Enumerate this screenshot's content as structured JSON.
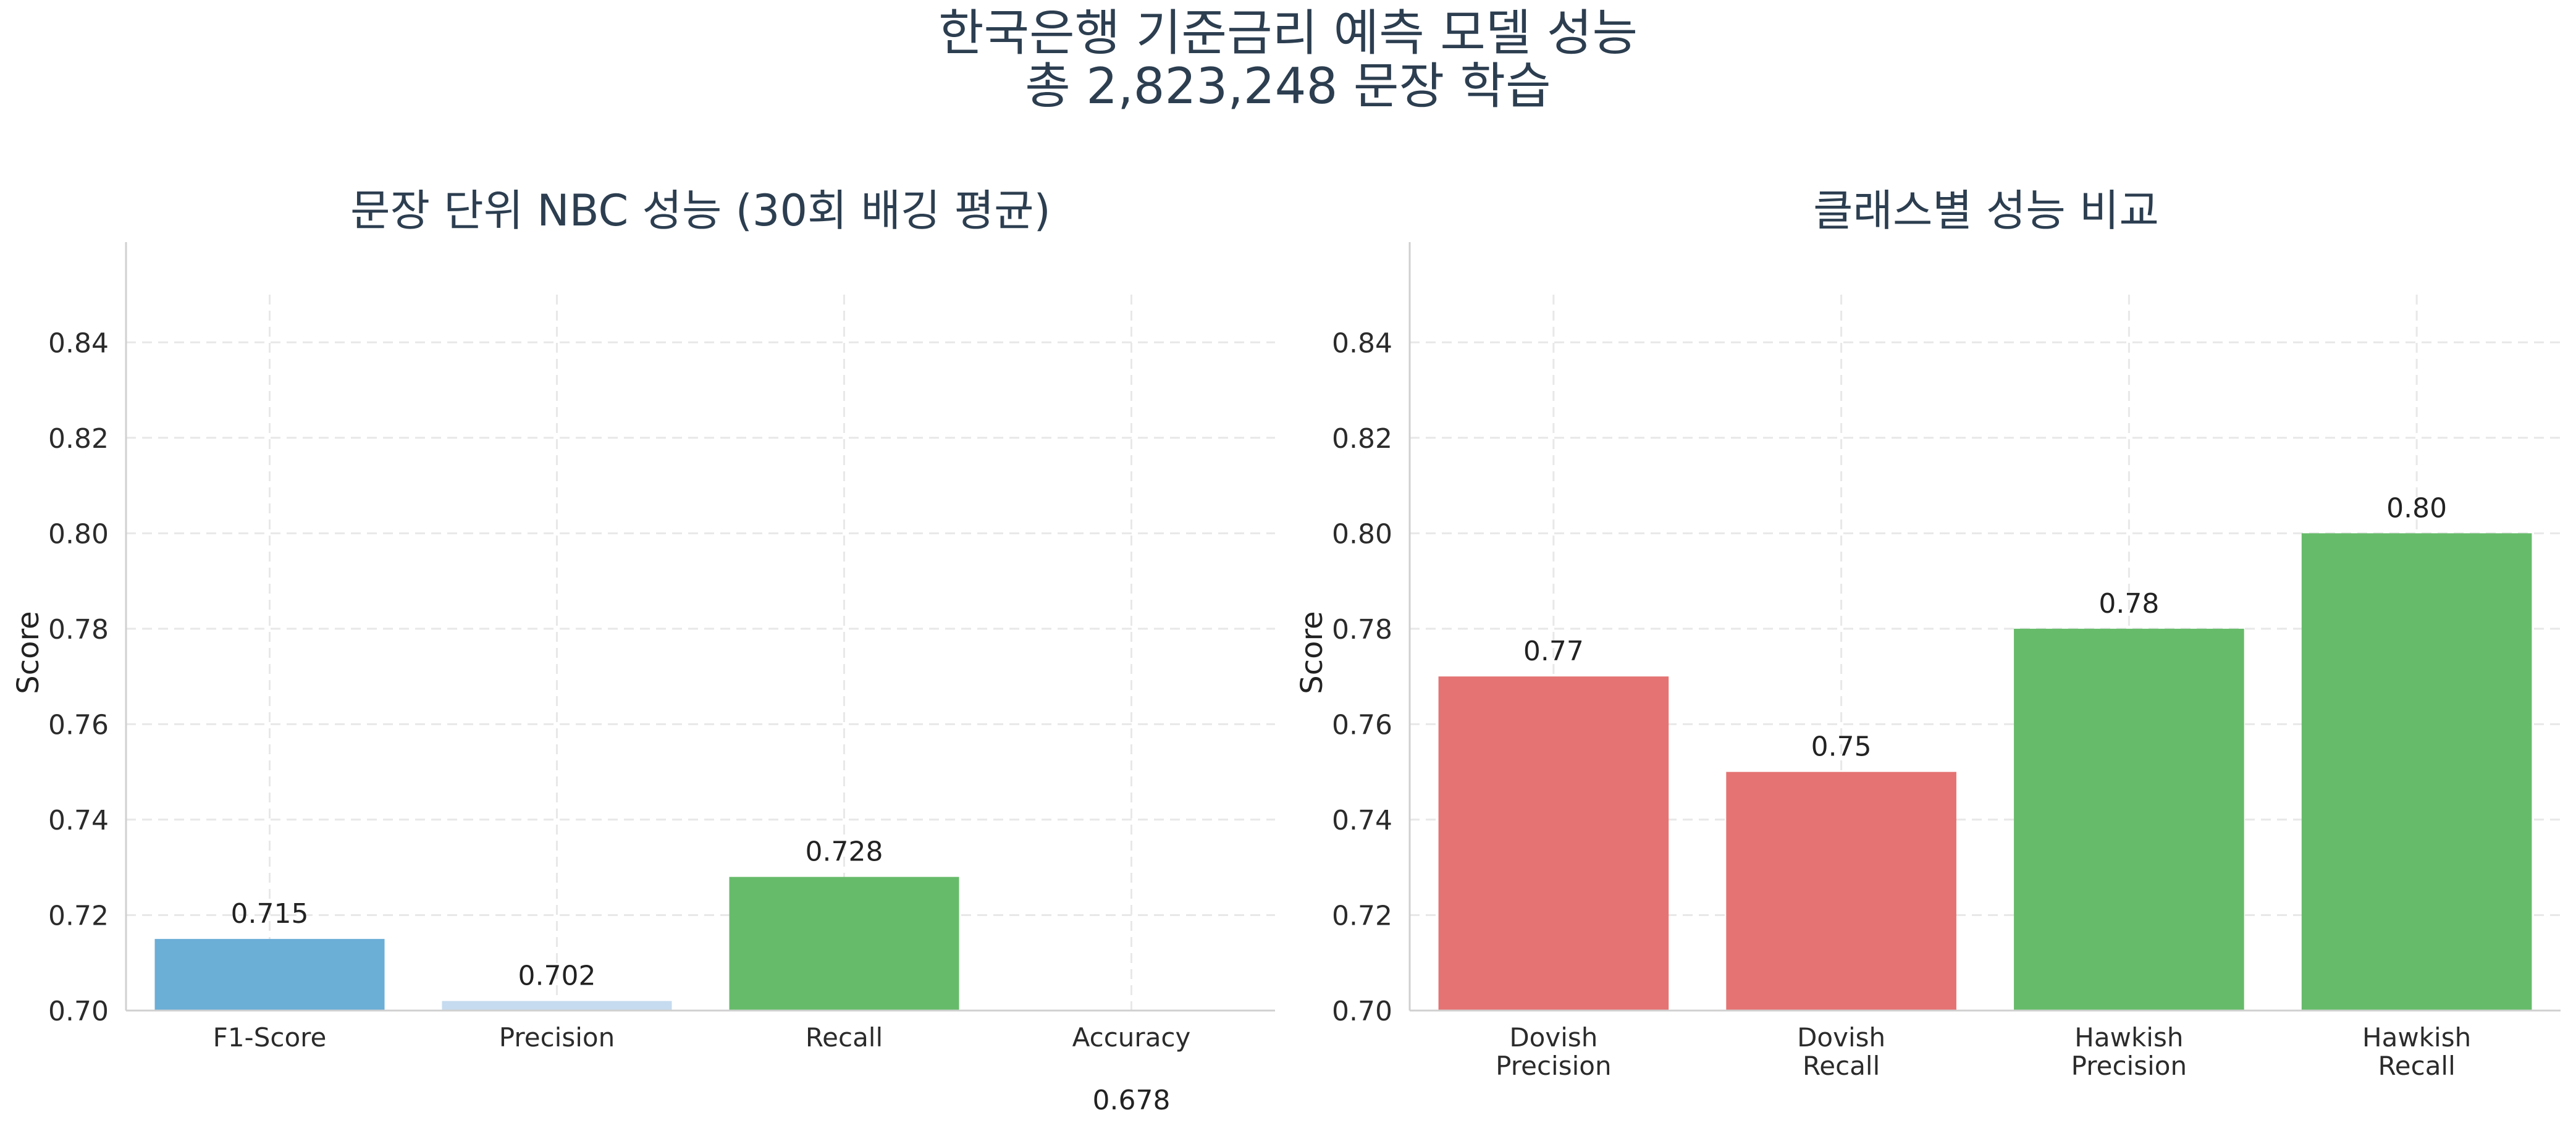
{
  "figure": {
    "title_line1": "한국은행 기준금리 예측 모델 성능",
    "title_line2": "총 2,823,248 문장 학습"
  },
  "chart_data": [
    {
      "type": "bar",
      "title": "문장 단위 NBC 성능 (30회 배깅 평균)",
      "xlabel": "",
      "ylabel": "Score",
      "ylim": [
        0.7,
        0.85
      ],
      "yticks": [
        "0.70",
        "0.72",
        "0.74",
        "0.76",
        "0.78",
        "0.80",
        "0.82",
        "0.84"
      ],
      "categories": [
        "F1-Score",
        "Precision",
        "Recall",
        "Accuracy"
      ],
      "values": [
        0.715,
        0.702,
        0.728,
        0.678
      ],
      "value_labels": [
        "0.715",
        "0.702",
        "0.728",
        "0.678"
      ],
      "colors": [
        "#6baed6",
        "#c6dbef",
        "#66bb6a",
        "#fdae6b"
      ],
      "grid": true
    },
    {
      "type": "bar",
      "title": "클래스별 성능 비교",
      "xlabel": "",
      "ylabel": "Score",
      "ylim": [
        0.7,
        0.85
      ],
      "yticks": [
        "0.70",
        "0.72",
        "0.74",
        "0.76",
        "0.78",
        "0.80",
        "0.82",
        "0.84"
      ],
      "categories": [
        "Dovish\nPrecision",
        "Dovish\nRecall",
        "Hawkish\nPrecision",
        "Hawkish\nRecall"
      ],
      "values": [
        0.77,
        0.75,
        0.78,
        0.8
      ],
      "value_labels": [
        "0.77",
        "0.75",
        "0.78",
        "0.80"
      ],
      "colors": [
        "#e57373",
        "#e57373",
        "#66bb6a",
        "#66bb6a"
      ],
      "grid": true
    }
  ]
}
